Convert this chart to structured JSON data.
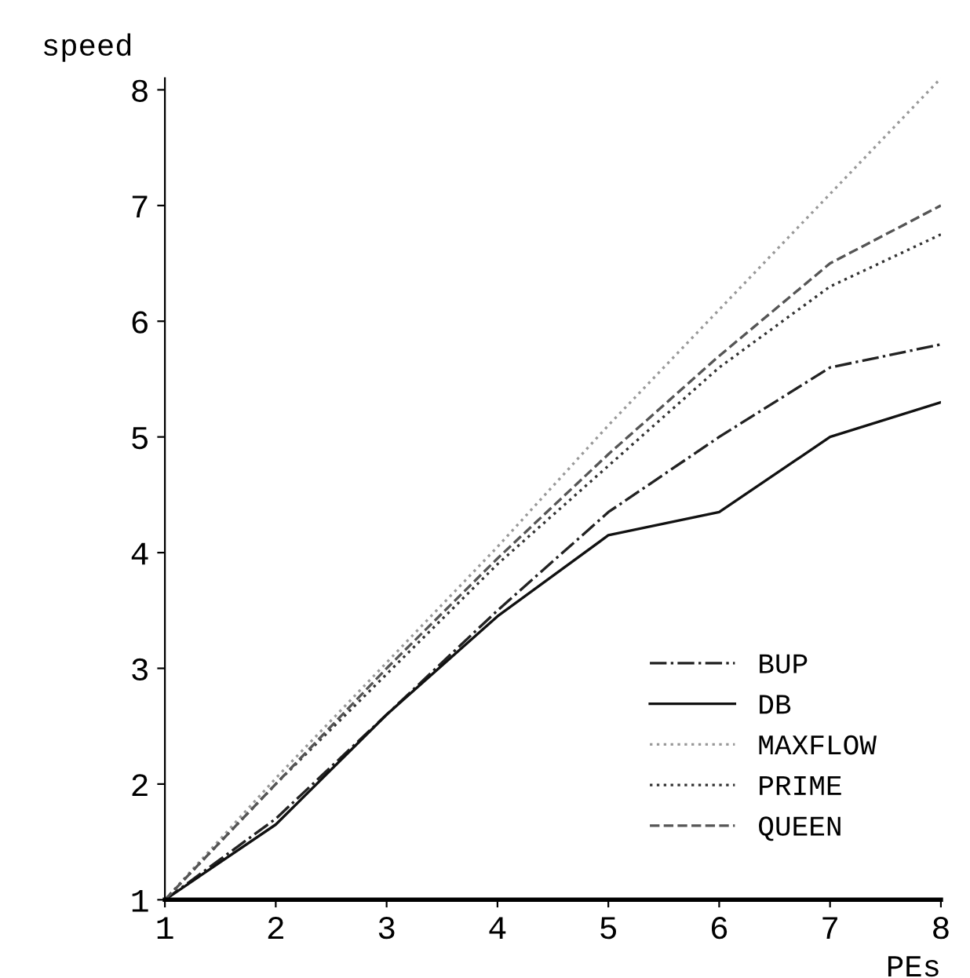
{
  "chart_data": {
    "type": "line",
    "xlabel": "PEs",
    "ylabel": "speed",
    "x": [
      1,
      2,
      3,
      4,
      5,
      6,
      7,
      8
    ],
    "series": [
      {
        "name": "BUP",
        "color": "#222222",
        "line_style": "dashdot",
        "values": [
          1,
          1.7,
          2.6,
          3.5,
          4.35,
          5.0,
          5.6,
          5.8
        ]
      },
      {
        "name": "DB",
        "color": "#111111",
        "line_style": "solid",
        "values": [
          1,
          1.65,
          2.6,
          3.45,
          4.15,
          4.35,
          5.0,
          5.3
        ]
      },
      {
        "name": "MAXFLOW",
        "color": "#999999",
        "line_style": "dotted",
        "values": [
          1,
          2.05,
          3.05,
          4.05,
          5.1,
          6.1,
          7.1,
          8.1
        ]
      },
      {
        "name": "PRIME",
        "color": "#333333",
        "line_style": "dotted",
        "values": [
          1,
          2.0,
          2.95,
          3.9,
          4.75,
          5.6,
          6.3,
          6.75
        ]
      },
      {
        "name": "QUEEN",
        "color": "#555555",
        "line_style": "dashed",
        "values": [
          1,
          2.0,
          3.0,
          3.95,
          4.85,
          5.7,
          6.5,
          7.0
        ]
      }
    ],
    "xlim": [
      1,
      8
    ],
    "ylim": [
      1,
      8.1
    ],
    "xticks": [
      1,
      2,
      3,
      4,
      5,
      6,
      7,
      8
    ],
    "yticks": [
      1,
      2,
      3,
      4,
      5,
      6,
      7,
      8
    ],
    "grid": false,
    "legend": "bottom right",
    "marker": "none"
  }
}
